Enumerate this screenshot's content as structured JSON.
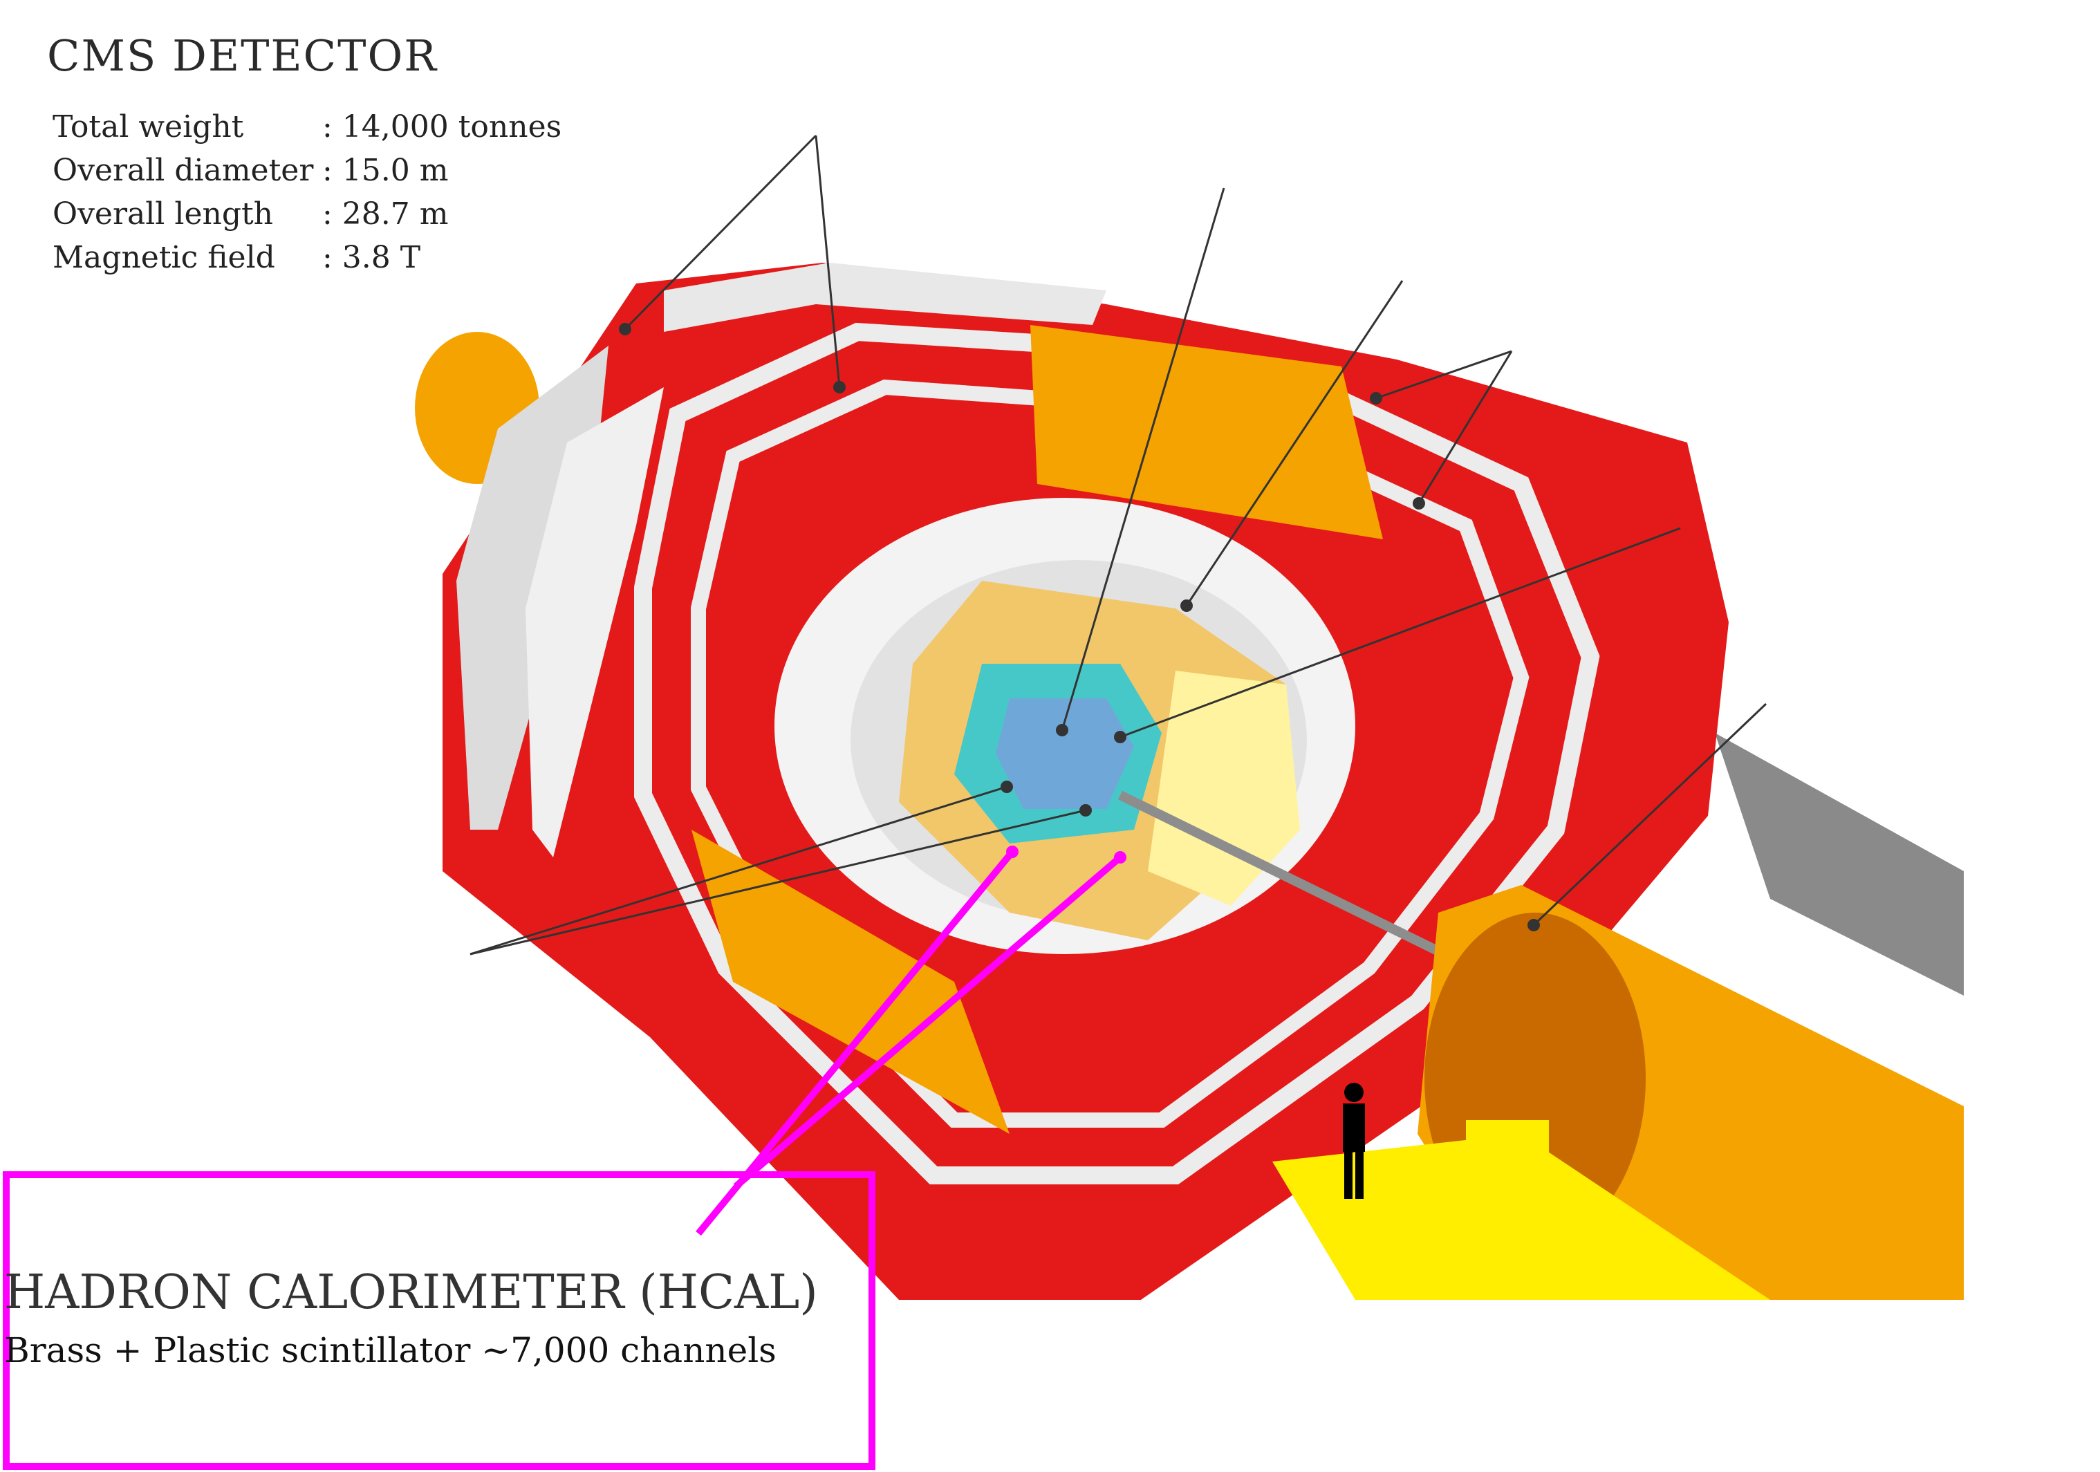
{
  "header": {
    "title": "CMS DETECTOR"
  },
  "specs": [
    {
      "label": "Total weight",
      "value": ": 14,000 tonnes"
    },
    {
      "label": "Overall diameter",
      "value": ": 15.0 m"
    },
    {
      "label": "Overall length",
      "value": ": 28.7 m"
    },
    {
      "label": "Magnetic field",
      "value": ": 3.8 T"
    }
  ],
  "callout": {
    "title": "HADRON CALORIMETER (HCAL)",
    "subtitle": "Brass + Plastic scintillator ~7,000 channels"
  },
  "colors": {
    "highlight": "#ff00ff",
    "return_yoke": "#e41a1a",
    "muon_chambers": "#e6e6e6",
    "hcal": "#f2c76a",
    "ecal": "#47c8c8",
    "beam_pipe": "#f5a000",
    "platform": "#ffee00"
  }
}
